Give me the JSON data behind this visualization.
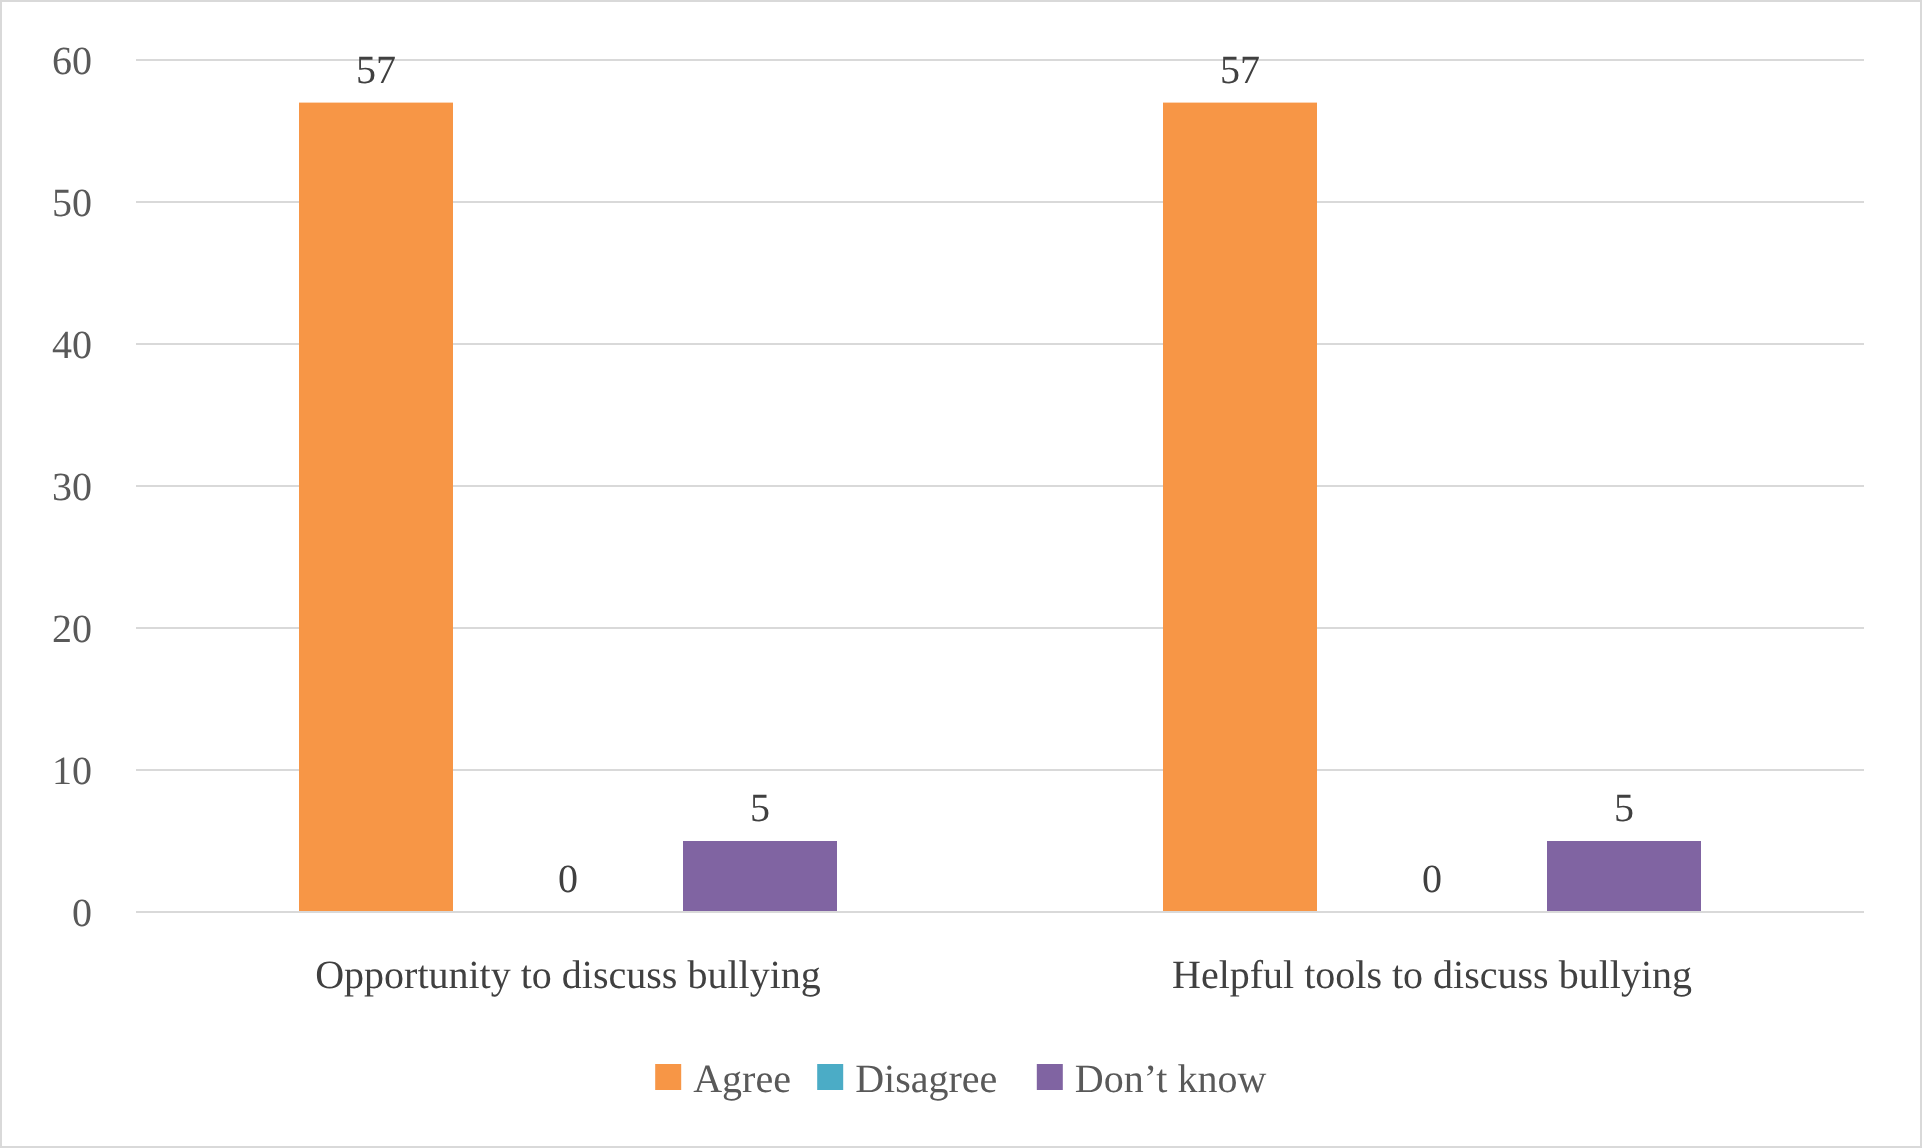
{
  "chart_data": {
    "type": "bar",
    "categories": [
      "Opportunity to discuss bullying",
      "Helpful tools to discuss bullying"
    ],
    "series": [
      {
        "name": "Agree",
        "color": "#f79646",
        "values": [
          57,
          57
        ]
      },
      {
        "name": "Disagree",
        "color": "#4bacc6",
        "values": [
          0,
          0
        ]
      },
      {
        "name": "Don’t know",
        "color": "#8064a2",
        "values": [
          5,
          5
        ]
      }
    ],
    "ylim": [
      0,
      60
    ],
    "yticks": [
      0,
      10,
      20,
      30,
      40,
      50,
      60
    ],
    "grid": "y",
    "legend": "bottom",
    "data_labels": true
  }
}
